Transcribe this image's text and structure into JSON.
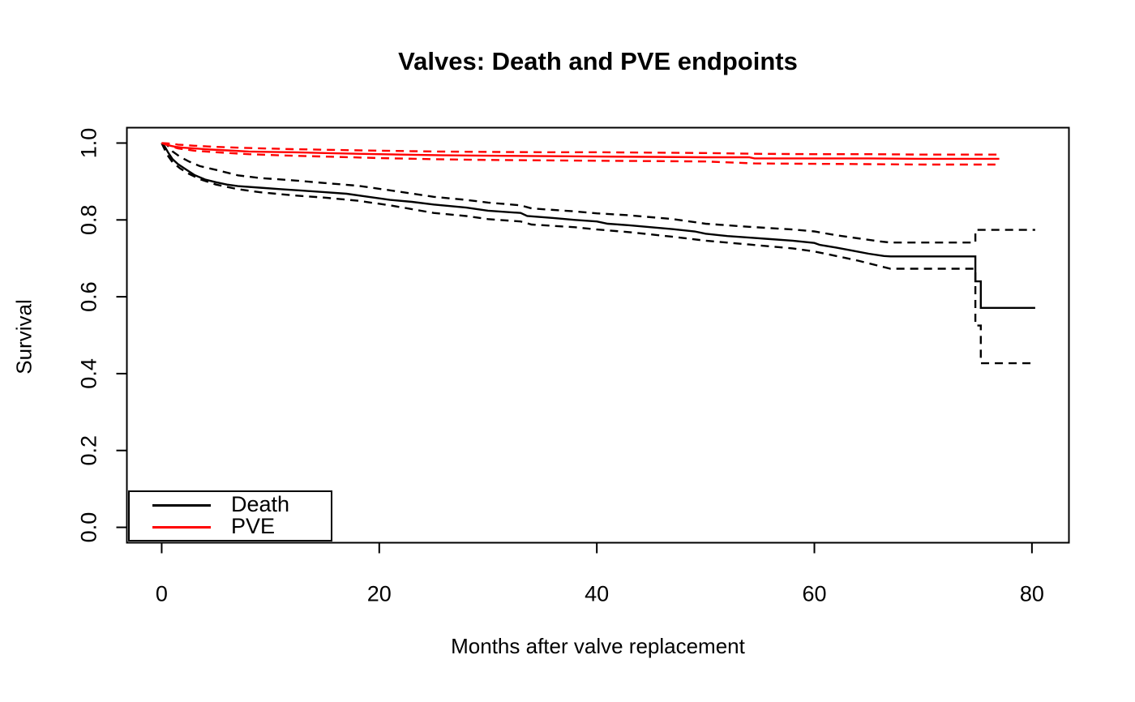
{
  "chart_data": {
    "type": "line",
    "title": "Valves: Death and PVE endpoints",
    "xlabel": "Months after valve replacement",
    "ylabel": "Survival",
    "xlim": [
      -3.2,
      83.4
    ],
    "ylim": [
      -0.04,
      1.04
    ],
    "xticks": {
      "values": [
        0,
        20,
        40,
        60,
        80
      ],
      "labels": [
        "0",
        "20",
        "40",
        "60",
        "80"
      ]
    },
    "yticks": {
      "values": [
        0.0,
        0.2,
        0.4,
        0.6,
        0.8,
        1.0
      ],
      "labels": [
        "0.0",
        "0.2",
        "0.4",
        "0.6",
        "0.8",
        "1.0"
      ]
    },
    "grid": false,
    "colors": {
      "death": "#000000",
      "pve": "#ff0000",
      "axis": "#000000",
      "background": "#ffffff"
    },
    "legend": {
      "position": "bottom-left",
      "entries": [
        {
          "label": "Death",
          "color": "#000000"
        },
        {
          "label": "PVE",
          "color": "#ff0000"
        }
      ]
    },
    "series": [
      {
        "name": "Death",
        "color": "#000000",
        "dash": "solid",
        "points": [
          [
            0,
            1.0
          ],
          [
            0.3,
            0.99
          ],
          [
            0.6,
            0.975
          ],
          [
            1,
            0.958
          ],
          [
            1.5,
            0.945
          ],
          [
            2.2,
            0.932
          ],
          [
            3,
            0.917
          ],
          [
            4,
            0.905
          ],
          [
            5,
            0.898
          ],
          [
            6,
            0.892
          ],
          [
            7,
            0.888
          ],
          [
            9,
            0.884
          ],
          [
            11,
            0.88
          ],
          [
            13,
            0.876
          ],
          [
            15,
            0.872
          ],
          [
            17,
            0.868
          ],
          [
            19,
            0.86
          ],
          [
            21,
            0.852
          ],
          [
            23,
            0.847
          ],
          [
            25,
            0.84
          ],
          [
            28,
            0.832
          ],
          [
            30,
            0.824
          ],
          [
            33,
            0.818
          ],
          [
            33.6,
            0.81
          ],
          [
            36,
            0.805
          ],
          [
            38,
            0.8
          ],
          [
            40,
            0.796
          ],
          [
            41,
            0.79
          ],
          [
            43,
            0.786
          ],
          [
            45,
            0.781
          ],
          [
            47,
            0.776
          ],
          [
            49,
            0.77
          ],
          [
            50,
            0.764
          ],
          [
            52,
            0.758
          ],
          [
            54,
            0.754
          ],
          [
            56,
            0.75
          ],
          [
            58,
            0.746
          ],
          [
            60,
            0.74
          ],
          [
            60.5,
            0.735
          ],
          [
            62,
            0.728
          ],
          [
            63.5,
            0.72
          ],
          [
            65,
            0.712
          ],
          [
            66.4,
            0.706
          ],
          [
            67,
            0.705
          ],
          [
            74.8,
            0.705
          ],
          [
            74.8,
            0.64
          ],
          [
            75.3,
            0.64
          ],
          [
            75.3,
            0.571
          ],
          [
            80.3,
            0.571
          ]
        ]
      },
      {
        "name": "Death upper 95% CI",
        "color": "#000000",
        "dash": "dashed",
        "points": [
          [
            0,
            1.0
          ],
          [
            0.5,
            0.995
          ],
          [
            1,
            0.978
          ],
          [
            1.7,
            0.964
          ],
          [
            2.5,
            0.952
          ],
          [
            3.5,
            0.94
          ],
          [
            5,
            0.93
          ],
          [
            7,
            0.916
          ],
          [
            9,
            0.909
          ],
          [
            12,
            0.903
          ],
          [
            15,
            0.896
          ],
          [
            18,
            0.889
          ],
          [
            21,
            0.877
          ],
          [
            25,
            0.86
          ],
          [
            28,
            0.852
          ],
          [
            30,
            0.845
          ],
          [
            33,
            0.838
          ],
          [
            34,
            0.83
          ],
          [
            38,
            0.822
          ],
          [
            40,
            0.817
          ],
          [
            43,
            0.812
          ],
          [
            47,
            0.802
          ],
          [
            50,
            0.79
          ],
          [
            54,
            0.782
          ],
          [
            58,
            0.775
          ],
          [
            60,
            0.77
          ],
          [
            62,
            0.76
          ],
          [
            64,
            0.752
          ],
          [
            66,
            0.744
          ],
          [
            67,
            0.741
          ],
          [
            74.8,
            0.741
          ],
          [
            74.8,
            0.774
          ],
          [
            80.3,
            0.774
          ]
        ]
      },
      {
        "name": "Death lower 95% CI",
        "color": "#000000",
        "dash": "dashed",
        "points": [
          [
            0,
            1.0
          ],
          [
            0.5,
            0.97
          ],
          [
            1,
            0.95
          ],
          [
            1.7,
            0.934
          ],
          [
            2.5,
            0.92
          ],
          [
            3.5,
            0.906
          ],
          [
            5,
            0.892
          ],
          [
            7,
            0.88
          ],
          [
            9,
            0.872
          ],
          [
            12,
            0.864
          ],
          [
            15,
            0.858
          ],
          [
            18,
            0.85
          ],
          [
            21,
            0.838
          ],
          [
            25,
            0.818
          ],
          [
            28,
            0.81
          ],
          [
            30,
            0.802
          ],
          [
            33,
            0.796
          ],
          [
            34,
            0.788
          ],
          [
            38,
            0.781
          ],
          [
            40,
            0.775
          ],
          [
            43,
            0.768
          ],
          [
            47,
            0.756
          ],
          [
            50,
            0.746
          ],
          [
            54,
            0.736
          ],
          [
            58,
            0.726
          ],
          [
            60,
            0.718
          ],
          [
            62,
            0.706
          ],
          [
            64,
            0.694
          ],
          [
            66,
            0.68
          ],
          [
            67,
            0.673
          ],
          [
            74.8,
            0.673
          ],
          [
            74.8,
            0.525
          ],
          [
            75.3,
            0.525
          ],
          [
            75.3,
            0.427
          ],
          [
            80.3,
            0.427
          ]
        ]
      },
      {
        "name": "PVE",
        "color": "#ff0000",
        "dash": "solid",
        "points": [
          [
            0,
            1.0
          ],
          [
            0.4,
            0.997
          ],
          [
            0.8,
            0.993
          ],
          [
            1.3,
            0.99
          ],
          [
            2,
            0.988
          ],
          [
            3,
            0.986
          ],
          [
            4.5,
            0.983
          ],
          [
            6,
            0.981
          ],
          [
            8,
            0.978
          ],
          [
            10,
            0.977
          ],
          [
            12,
            0.976
          ],
          [
            15,
            0.974
          ],
          [
            18,
            0.972
          ],
          [
            22,
            0.97
          ],
          [
            26,
            0.968
          ],
          [
            30,
            0.967
          ],
          [
            35,
            0.966
          ],
          [
            40,
            0.965
          ],
          [
            45,
            0.964
          ],
          [
            50,
            0.963
          ],
          [
            54,
            0.963
          ],
          [
            54.5,
            0.96
          ],
          [
            60,
            0.96
          ],
          [
            65,
            0.96
          ],
          [
            70,
            0.959
          ],
          [
            77,
            0.959
          ]
        ]
      },
      {
        "name": "PVE upper 95% CI",
        "color": "#ff0000",
        "dash": "dashed",
        "points": [
          [
            0,
            1.0
          ],
          [
            0.6,
            0.999
          ],
          [
            1.5,
            0.996
          ],
          [
            3,
            0.993
          ],
          [
            5,
            0.99
          ],
          [
            8,
            0.987
          ],
          [
            12,
            0.984
          ],
          [
            16,
            0.982
          ],
          [
            20,
            0.98
          ],
          [
            25,
            0.978
          ],
          [
            30,
            0.977
          ],
          [
            35,
            0.976
          ],
          [
            40,
            0.976
          ],
          [
            45,
            0.975
          ],
          [
            50,
            0.974
          ],
          [
            54.5,
            0.972
          ],
          [
            60,
            0.971
          ],
          [
            65,
            0.971
          ],
          [
            70,
            0.97
          ],
          [
            77,
            0.97
          ]
        ]
      },
      {
        "name": "PVE lower 95% CI",
        "color": "#ff0000",
        "dash": "dashed",
        "points": [
          [
            0,
            1.0
          ],
          [
            0.6,
            0.994
          ],
          [
            1.5,
            0.986
          ],
          [
            3,
            0.98
          ],
          [
            5,
            0.976
          ],
          [
            8,
            0.971
          ],
          [
            12,
            0.967
          ],
          [
            16,
            0.964
          ],
          [
            20,
            0.961
          ],
          [
            25,
            0.958
          ],
          [
            30,
            0.956
          ],
          [
            35,
            0.955
          ],
          [
            40,
            0.954
          ],
          [
            45,
            0.953
          ],
          [
            50,
            0.952
          ],
          [
            54.5,
            0.947
          ],
          [
            60,
            0.946
          ],
          [
            65,
            0.945
          ],
          [
            70,
            0.944
          ],
          [
            77,
            0.944
          ]
        ]
      }
    ]
  }
}
